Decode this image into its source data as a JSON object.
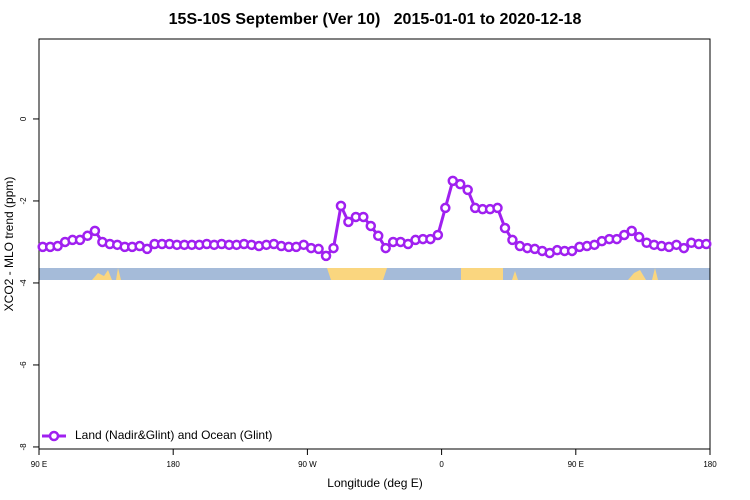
{
  "chart_data": {
    "type": "line",
    "title": "15S-10S September (Ver 10)   2015-01-01 to 2020-12-18",
    "x_label": "Longitude (deg E)",
    "y_label": "XCO2 - MLO trend (ppm)",
    "x": [
      92.5,
      97.5,
      102.5,
      107.5,
      112.5,
      117.5,
      122.5,
      127.5,
      132.5,
      137.5,
      142.5,
      147.5,
      152.5,
      157.5,
      162.5,
      167.5,
      172.5,
      177.5,
      182.5,
      187.5,
      192.5,
      197.5,
      202.5,
      207.5,
      212.5,
      217.5,
      222.5,
      227.5,
      232.5,
      237.5,
      242.5,
      247.5,
      252.5,
      257.5,
      262.5,
      267.5,
      272.5,
      277.5,
      282.5,
      287.5,
      292.5,
      297.5,
      302.5,
      307.5,
      312.5,
      317.5,
      322.5,
      327.5,
      332.5,
      337.5,
      342.5,
      347.5,
      352.5,
      357.5,
      362.5,
      367.5,
      372.5,
      377.5,
      382.5,
      387.5,
      392.5,
      397.5,
      402.5,
      407.5,
      412.5,
      417.5,
      422.5,
      427.5,
      432.5,
      437.5,
      442.5,
      447.5,
      452.5,
      457.5,
      462.5,
      467.5,
      472.5,
      477.5,
      482.5,
      487.5,
      492.5,
      497.5,
      502.5,
      507.5,
      512.5,
      517.5,
      522.5,
      527.5,
      532.5,
      537.5
    ],
    "series": [
      {
        "name": "Land (Nadir&Glint) and Ocean (Glint)",
        "color": "#a020f0",
        "values": [
          -3.12,
          -3.12,
          -3.1,
          -3.0,
          -2.95,
          -2.95,
          -2.85,
          -2.73,
          -3.0,
          -3.05,
          -3.07,
          -3.12,
          -3.12,
          -3.1,
          -3.17,
          -3.05,
          -3.05,
          -3.05,
          -3.07,
          -3.07,
          -3.07,
          -3.07,
          -3.05,
          -3.07,
          -3.05,
          -3.07,
          -3.07,
          -3.05,
          -3.07,
          -3.1,
          -3.07,
          -3.05,
          -3.1,
          -3.12,
          -3.12,
          -3.07,
          -3.15,
          -3.17,
          -3.34,
          -3.15,
          -2.12,
          -2.51,
          -2.39,
          -2.39,
          -2.61,
          -2.85,
          -3.15,
          -3.0,
          -3.0,
          -3.05,
          -2.95,
          -2.93,
          -2.93,
          -2.83,
          -2.17,
          -1.51,
          -1.59,
          -1.73,
          -2.17,
          -2.2,
          -2.2,
          -2.17,
          -2.66,
          -2.95,
          -3.1,
          -3.15,
          -3.17,
          -3.22,
          -3.27,
          -3.2,
          -3.22,
          -3.22,
          -3.12,
          -3.1,
          -3.07,
          -2.98,
          -2.93,
          -2.93,
          -2.83,
          -2.73,
          -2.88,
          -3.02,
          -3.07,
          -3.1,
          -3.12,
          -3.07,
          -3.15,
          -3.02,
          -3.05,
          -3.05
        ]
      }
    ],
    "xlim": [
      90,
      540
    ],
    "xticks": [
      {
        "value": 90,
        "label": "90 E"
      },
      {
        "value": 180,
        "label": "180"
      },
      {
        "value": 270,
        "label": "90 W"
      },
      {
        "value": 360,
        "label": "0"
      },
      {
        "value": 450,
        "label": "90 E"
      },
      {
        "value": 540,
        "label": "180"
      }
    ],
    "ylim": [
      -8.05,
      1.95
    ],
    "yticks": [
      0,
      -2,
      -4,
      -6,
      -8
    ],
    "legend": "bottom-left"
  }
}
